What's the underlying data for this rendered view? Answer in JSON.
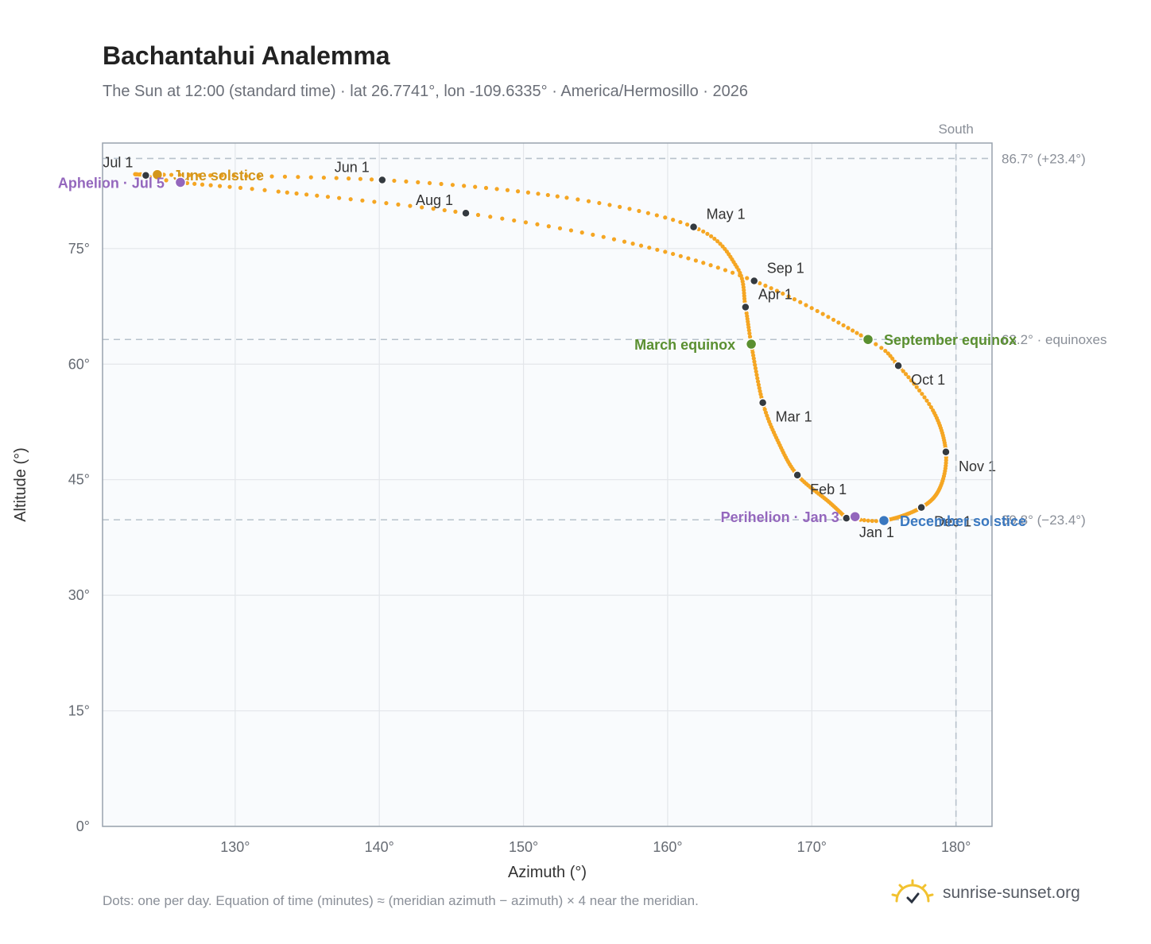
{
  "header": {
    "title": "Bachantahui Analemma",
    "subtitle": "The Sun at 12:00 (standard time) · lat 26.7741°, lon -109.6335° · America/Hermosillo · 2026"
  },
  "footer": {
    "note": "Dots: one per day. Equation of time (minutes) ≈ (meridian azimuth − azimuth) × 4 near the meridian.",
    "brand": "sunrise-sunset.org"
  },
  "colors": {
    "curve": "#f5a623",
    "month_dot": "#343a40",
    "solstice_june": "#d4961a",
    "solstice_december": "#3a78c0",
    "equinox": "#5a8f30",
    "apsis": "#9467bd",
    "grid": "#e3e6ea",
    "guide": "#b8c2cc",
    "plot_bg": "#f9fbfd",
    "axis": "#98a2ad"
  },
  "chart_data": {
    "type": "scatter",
    "xlabel": "Azimuth (°)",
    "ylabel": "Altitude (°)",
    "xlim": [
      120.8,
      182.5
    ],
    "ylim": [
      0,
      88.7
    ],
    "grid": true,
    "x_ticks": [
      {
        "value": 130,
        "label": "130°"
      },
      {
        "value": 140,
        "label": "140°"
      },
      {
        "value": 150,
        "label": "150°"
      },
      {
        "value": 160,
        "label": "160°"
      },
      {
        "value": 170,
        "label": "170°"
      },
      {
        "value": 180,
        "label": "180°"
      }
    ],
    "y_ticks": [
      {
        "value": 0,
        "label": "0°"
      },
      {
        "value": 15,
        "label": "15°"
      },
      {
        "value": 30,
        "label": "30°"
      },
      {
        "value": 45,
        "label": "45°"
      },
      {
        "value": 60,
        "label": "60°"
      },
      {
        "value": 75,
        "label": "75°"
      }
    ],
    "reference_lines": [
      {
        "axis": "y",
        "value": 86.7,
        "label": "86.7° (+23.4°)"
      },
      {
        "axis": "y",
        "value": 63.2,
        "label": "63.2° · equinoxes"
      },
      {
        "axis": "y",
        "value": 39.8,
        "label": "39.8° (−23.4°)"
      },
      {
        "axis": "x",
        "value": 180,
        "label": "South"
      }
    ],
    "analemma_knots": [
      {
        "date": "2026-01-01",
        "azimuth": 172.4,
        "altitude": 40.0
      },
      {
        "date": "2026-01-15",
        "azimuth": 171.2,
        "altitude": 42.1
      },
      {
        "date": "2026-02-01",
        "azimuth": 169.0,
        "altitude": 45.6
      },
      {
        "date": "2026-02-15",
        "azimuth": 167.7,
        "altitude": 49.8
      },
      {
        "date": "2026-03-01",
        "azimuth": 166.6,
        "altitude": 55.0
      },
      {
        "date": "2026-03-20",
        "azimuth": 165.8,
        "altitude": 62.6
      },
      {
        "date": "2026-04-01",
        "azimuth": 165.4,
        "altitude": 67.4
      },
      {
        "date": "2026-04-15",
        "azimuth": 164.8,
        "altitude": 72.6
      },
      {
        "date": "2026-05-01",
        "azimuth": 161.8,
        "altitude": 77.8
      },
      {
        "date": "2026-05-15",
        "azimuth": 153.0,
        "altitude": 81.6
      },
      {
        "date": "2026-06-01",
        "azimuth": 140.2,
        "altitude": 83.9
      },
      {
        "date": "2026-06-21",
        "azimuth": 124.6,
        "altitude": 84.6
      },
      {
        "date": "2026-07-01",
        "azimuth": 123.8,
        "altitude": 84.5
      },
      {
        "date": "2026-07-05",
        "azimuth": 126.2,
        "altitude": 83.6
      },
      {
        "date": "2026-07-15",
        "azimuth": 133.0,
        "altitude": 82.4
      },
      {
        "date": "2026-08-01",
        "azimuth": 146.0,
        "altitude": 79.6
      },
      {
        "date": "2026-08-15",
        "azimuth": 157.0,
        "altitude": 75.9
      },
      {
        "date": "2026-09-01",
        "azimuth": 166.0,
        "altitude": 70.8
      },
      {
        "date": "2026-09-23",
        "azimuth": 173.9,
        "altitude": 63.2
      },
      {
        "date": "2026-10-01",
        "azimuth": 176.0,
        "altitude": 59.8
      },
      {
        "date": "2026-10-15",
        "azimuth": 178.4,
        "altitude": 54.0
      },
      {
        "date": "2026-11-01",
        "azimuth": 179.3,
        "altitude": 48.6
      },
      {
        "date": "2026-11-15",
        "azimuth": 178.9,
        "altitude": 44.0
      },
      {
        "date": "2026-12-01",
        "azimuth": 177.6,
        "altitude": 41.4
      },
      {
        "date": "2026-12-21",
        "azimuth": 175.0,
        "altitude": 39.7
      },
      {
        "date": "2026-12-31",
        "azimuth": 172.6,
        "altitude": 40.0
      }
    ],
    "month_markers": [
      {
        "label": "Jan 1",
        "azimuth": 172.4,
        "altitude": 40.0,
        "label_pos": "below-right"
      },
      {
        "label": "Feb 1",
        "azimuth": 169.0,
        "altitude": 45.6,
        "label_pos": "below-right"
      },
      {
        "label": "Mar 1",
        "azimuth": 166.6,
        "altitude": 55.0,
        "label_pos": "below-right"
      },
      {
        "label": "Apr 1",
        "azimuth": 165.4,
        "altitude": 67.4,
        "label_pos": "above-right"
      },
      {
        "label": "May 1",
        "azimuth": 161.8,
        "altitude": 77.8,
        "label_pos": "above-right"
      },
      {
        "label": "Jun 1",
        "azimuth": 140.2,
        "altitude": 83.9,
        "label_pos": "above-left"
      },
      {
        "label": "Jul 1",
        "azimuth": 123.8,
        "altitude": 84.5,
        "label_pos": "above-left"
      },
      {
        "label": "Aug 1",
        "azimuth": 146.0,
        "altitude": 79.6,
        "label_pos": "above-left"
      },
      {
        "label": "Sep 1",
        "azimuth": 166.0,
        "altitude": 70.8,
        "label_pos": "above-right"
      },
      {
        "label": "Oct 1",
        "azimuth": 176.0,
        "altitude": 59.8,
        "label_pos": "below-right"
      },
      {
        "label": "Nov 1",
        "azimuth": 179.3,
        "altitude": 48.6,
        "label_pos": "below-right"
      },
      {
        "label": "Dec 1",
        "azimuth": 177.6,
        "altitude": 41.4,
        "label_pos": "below-right"
      }
    ],
    "events": [
      {
        "label": "June solstice",
        "azimuth": 124.6,
        "altitude": 84.6,
        "color_key": "solstice_june",
        "label_pos": "right"
      },
      {
        "label": "December solstice",
        "azimuth": 175.0,
        "altitude": 39.7,
        "color_key": "solstice_december",
        "label_pos": "right"
      },
      {
        "label": "March equinox",
        "azimuth": 165.8,
        "altitude": 62.6,
        "color_key": "equinox",
        "label_pos": "left"
      },
      {
        "label": "September equinox",
        "azimuth": 173.9,
        "altitude": 63.2,
        "color_key": "equinox",
        "label_pos": "right"
      },
      {
        "label": "Aphelion · Jul 5",
        "azimuth": 126.2,
        "altitude": 83.6,
        "color_key": "apsis",
        "label_pos": "left"
      },
      {
        "label": "Perihelion · Jan 3",
        "azimuth": 173.0,
        "altitude": 40.2,
        "color_key": "apsis",
        "label_pos": "left"
      }
    ]
  }
}
